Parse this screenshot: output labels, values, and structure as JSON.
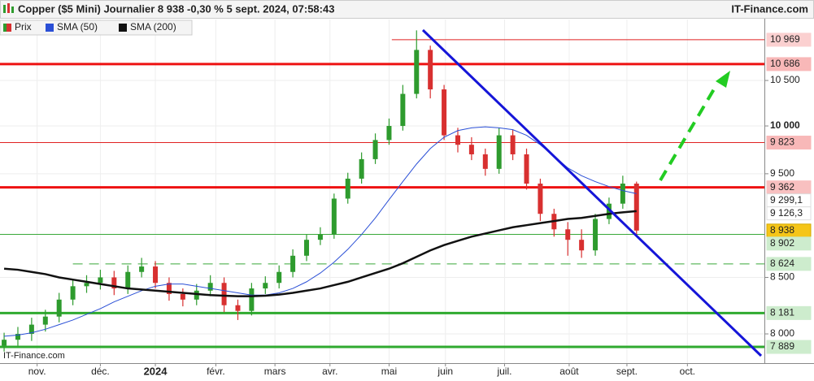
{
  "chart_data": {
    "type": "candlestick",
    "title": "Copper ($5 Mini) Journalier 8 938 -0,30 % 5 sept. 2024, 07:58:43",
    "source": "IT-Finance.com",
    "watermark": "IT-Finance.com",
    "log_scale": true,
    "grid": true,
    "ylim": [
      7753,
      11210
    ],
    "yticks": [
      {
        "value": 8000,
        "label": "8 000"
      },
      {
        "value": 8500,
        "label": "8 500"
      },
      {
        "value": 9500,
        "label": "9 500"
      },
      {
        "value": 10000,
        "label": "10 000"
      },
      {
        "value": 10500,
        "label": "10 500"
      }
    ],
    "xlim": [
      -0.3,
      55.3
    ],
    "xticks": [
      {
        "value": 2.4,
        "label": "nov."
      },
      {
        "value": 7,
        "label": "déc."
      },
      {
        "value": 11,
        "label": "2024"
      },
      {
        "value": 15.4,
        "label": "févr."
      },
      {
        "value": 19.7,
        "label": "mars"
      },
      {
        "value": 23.7,
        "label": "avr."
      },
      {
        "value": 28,
        "label": "mai"
      },
      {
        "value": 32.1,
        "label": "juin"
      },
      {
        "value": 36.4,
        "label": "juil."
      },
      {
        "value": 41.1,
        "label": "août"
      },
      {
        "value": 45.3,
        "label": "sept."
      },
      {
        "value": 49.7,
        "label": "oct."
      }
    ],
    "price": {
      "name": "Prix",
      "up_color": "#2e9b2e",
      "down_color": "#d83030",
      "open": [
        7900,
        7950,
        8000,
        8080,
        8150,
        8300,
        8420,
        8450,
        8500,
        8400,
        8550,
        8600,
        8450,
        8350,
        8300,
        8380,
        8450,
        8250,
        8200,
        8400,
        8450,
        8550,
        8700,
        8850,
        8900,
        9250,
        9450,
        9650,
        9850,
        10000,
        10350,
        10850,
        10400,
        9900,
        9800,
        9700,
        9550,
        9900,
        9700,
        9400,
        9100,
        8950,
        8850,
        8750,
        9050,
        9200,
        9400
      ],
      "high": [
        8010,
        8060,
        8140,
        8210,
        8360,
        8480,
        8520,
        8570,
        8560,
        8610,
        8680,
        8650,
        8500,
        8400,
        8440,
        8520,
        8500,
        8300,
        8450,
        8510,
        8610,
        8760,
        8900,
        8970,
        9300,
        9510,
        9720,
        9920,
        10080,
        10450,
        11080,
        10900,
        10450,
        9980,
        9880,
        9760,
        9980,
        9960,
        9760,
        9450,
        9150,
        9020,
        8950,
        9100,
        9260,
        9480,
        9420
      ],
      "low": [
        7850,
        7900,
        7940,
        8020,
        8100,
        8250,
        8360,
        8390,
        8340,
        8350,
        8500,
        8400,
        8290,
        8240,
        8250,
        8330,
        8190,
        8120,
        8160,
        8350,
        8400,
        8500,
        8650,
        8800,
        8860,
        9200,
        9400,
        9600,
        9800,
        9950,
        10300,
        10300,
        9850,
        9720,
        9640,
        9480,
        9500,
        9640,
        9340,
        9030,
        8880,
        8700,
        8680,
        8700,
        9000,
        9150,
        8900
      ],
      "close": [
        7950,
        8000,
        8080,
        8150,
        8300,
        8420,
        8450,
        8500,
        8400,
        8550,
        8600,
        8450,
        8350,
        8300,
        8380,
        8450,
        8250,
        8200,
        8400,
        8450,
        8550,
        8700,
        8850,
        8900,
        9250,
        9450,
        9650,
        9850,
        10000,
        10350,
        10850,
        10400,
        9900,
        9800,
        9700,
        9550,
        9900,
        9700,
        9400,
        9100,
        8950,
        8850,
        8750,
        9050,
        9200,
        9400,
        8938
      ],
      "last_label": "8 938"
    },
    "series": [
      {
        "name": "SMA (50)",
        "color": "#2a4fd6",
        "last_label": "9 299,1",
        "values": [
          7980,
          7990,
          8010,
          8040,
          8080,
          8120,
          8170,
          8220,
          8280,
          8330,
          8380,
          8420,
          8440,
          8440,
          8420,
          8400,
          8380,
          8360,
          8340,
          8340,
          8360,
          8400,
          8460,
          8540,
          8640,
          8760,
          8900,
          9060,
          9240,
          9420,
          9600,
          9760,
          9880,
          9950,
          9980,
          9990,
          9980,
          9960,
          9900,
          9800,
          9680,
          9560,
          9480,
          9420,
          9370,
          9330,
          9299.1
        ]
      },
      {
        "name": "SMA (200)",
        "color": "#111111",
        "last_label": "9 126,3",
        "values": [
          8580,
          8570,
          8550,
          8530,
          8500,
          8480,
          8460,
          8440,
          8420,
          8400,
          8390,
          8380,
          8370,
          8360,
          8350,
          8340,
          8335,
          8330,
          8330,
          8335,
          8345,
          8360,
          8380,
          8400,
          8430,
          8460,
          8500,
          8540,
          8580,
          8630,
          8690,
          8750,
          8800,
          8840,
          8880,
          8910,
          8940,
          8970,
          8990,
          9010,
          9030,
          9050,
          9060,
          9080,
          9100,
          9115,
          9126.3
        ]
      }
    ],
    "levels": [
      {
        "value": 10969,
        "label": "10 969",
        "color": "#e02020",
        "width": 1,
        "start": 28.2,
        "box": "#fbd0d0"
      },
      {
        "value": 10686,
        "label": "10 686",
        "color": "#ee1111",
        "width": 3,
        "box": "#f8b8b8"
      },
      {
        "value": 9823,
        "label": "9 823",
        "color": "#e02020",
        "width": 1,
        "box": "#f8b8b8"
      },
      {
        "value": 9362,
        "label": "9 362",
        "color": "#ee1111",
        "width": 3,
        "box": "#f8c0c0"
      },
      {
        "value": 8902,
        "label": "8 902",
        "color": "#3aa83a",
        "width": 1,
        "box": "#cdeccd"
      },
      {
        "value": 8624,
        "label": "8 624",
        "color": "#3aa83a",
        "width": 1,
        "dash": true,
        "start": 5,
        "box": "#cdeccd"
      },
      {
        "value": 8181,
        "label": "8 181",
        "color": "#2faa2f",
        "width": 3,
        "box": "#cdeccd"
      },
      {
        "value": 7889,
        "label": "7 889",
        "color": "#2faa2f",
        "width": 3,
        "box": "#cdeccd"
      }
    ]
  }
}
